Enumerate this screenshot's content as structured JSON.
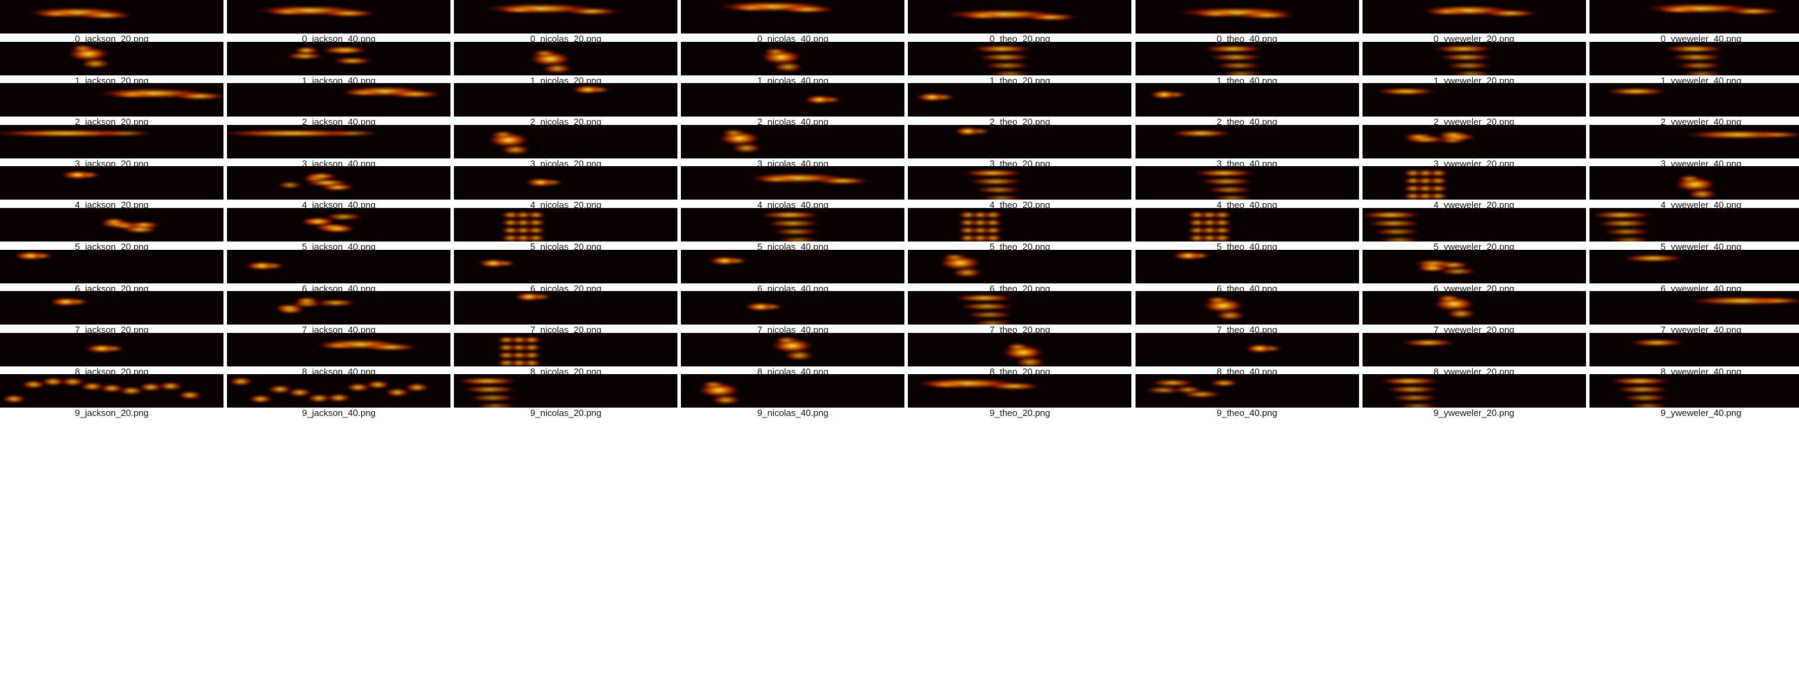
{
  "rows": [
    {
      "label": "0",
      "cells": [
        {
          "caption": "0_jackson_20.png",
          "style": "streak",
          "intensity": 0.8
        },
        {
          "caption": "0_jackson_40.png",
          "style": "streak",
          "intensity": 0.85
        },
        {
          "caption": "0_nicolas_20.png",
          "style": "streak",
          "intensity": 0.9
        },
        {
          "caption": "0_nicolas_40.png",
          "style": "streak",
          "intensity": 0.9
        },
        {
          "caption": "0_theo_20.png",
          "style": "streak",
          "intensity": 0.95
        },
        {
          "caption": "0_theo_40.png",
          "style": "streak",
          "intensity": 0.95
        },
        {
          "caption": "0_yweweler_20.png",
          "style": "streak",
          "intensity": 0.75
        },
        {
          "caption": "0_yweweler_40.png",
          "style": "streak",
          "intensity": 0.9
        }
      ]
    },
    {
      "label": "1",
      "cells": [
        {
          "caption": "1_jackson_20.png",
          "style": "blob",
          "intensity": 0.85
        },
        {
          "caption": "1_jackson_40.png",
          "style": "scatter",
          "intensity": 0.9
        },
        {
          "caption": "1_nicolas_20.png",
          "style": "blob",
          "intensity": 0.8
        },
        {
          "caption": "1_nicolas_40.png",
          "style": "blob",
          "intensity": 0.85
        },
        {
          "caption": "1_theo_20.png",
          "style": "layered",
          "intensity": 0.9
        },
        {
          "caption": "1_theo_40.png",
          "style": "layered",
          "intensity": 0.85
        },
        {
          "caption": "1_yweweler_20.png",
          "style": "layered",
          "intensity": 0.85
        },
        {
          "caption": "1_yweweler_40.png",
          "style": "layered",
          "intensity": 0.8
        }
      ]
    },
    {
      "label": "2",
      "cells": [
        {
          "caption": "2_jackson_20.png",
          "style": "streak",
          "intensity": 0.9
        },
        {
          "caption": "2_jackson_40.png",
          "style": "streak",
          "intensity": 0.7
        },
        {
          "caption": "2_nicolas_20.png",
          "style": "dot",
          "intensity": 0.8
        },
        {
          "caption": "2_nicolas_40.png",
          "style": "dot",
          "intensity": 0.75
        },
        {
          "caption": "2_theo_20.png",
          "style": "dot",
          "intensity": 0.8
        },
        {
          "caption": "2_theo_40.png",
          "style": "dot",
          "intensity": 0.7
        },
        {
          "caption": "2_yweweler_20.png",
          "style": "bar",
          "intensity": 0.9
        },
        {
          "caption": "2_yweweler_40.png",
          "style": "bar",
          "intensity": 0.8
        }
      ]
    },
    {
      "label": "3",
      "cells": [
        {
          "caption": "3_jackson_20.png",
          "style": "longbar",
          "intensity": 0.9
        },
        {
          "caption": "3_jackson_40.png",
          "style": "longbar",
          "intensity": 0.9
        },
        {
          "caption": "3_nicolas_20.png",
          "style": "blob",
          "intensity": 0.85
        },
        {
          "caption": "3_nicolas_40.png",
          "style": "blob",
          "intensity": 0.9
        },
        {
          "caption": "3_theo_20.png",
          "style": "dot",
          "intensity": 0.6
        },
        {
          "caption": "3_theo_40.png",
          "style": "bar",
          "intensity": 0.9
        },
        {
          "caption": "3_yweweler_20.png",
          "style": "scatter",
          "intensity": 0.75
        },
        {
          "caption": "3_yweweler_40.png",
          "style": "rightbar",
          "intensity": 0.9
        }
      ]
    },
    {
      "label": "4",
      "cells": [
        {
          "caption": "4_jackson_20.png",
          "style": "dot",
          "intensity": 0.85
        },
        {
          "caption": "4_jackson_40.png",
          "style": "scatter",
          "intensity": 0.85
        },
        {
          "caption": "4_nicolas_20.png",
          "style": "dot",
          "intensity": 0.75
        },
        {
          "caption": "4_nicolas_40.png",
          "style": "streak",
          "intensity": 0.8
        },
        {
          "caption": "4_theo_20.png",
          "style": "layered",
          "intensity": 0.9
        },
        {
          "caption": "4_theo_40.png",
          "style": "layered",
          "intensity": 0.85
        },
        {
          "caption": "4_yweweler_20.png",
          "style": "block",
          "intensity": 0.9
        },
        {
          "caption": "4_yweweler_40.png",
          "style": "blob",
          "intensity": 0.7
        }
      ]
    },
    {
      "label": "5",
      "cells": [
        {
          "caption": "5_jackson_20.png",
          "style": "scatter",
          "intensity": 0.8
        },
        {
          "caption": "5_jackson_40.png",
          "style": "scatter",
          "intensity": 0.7
        },
        {
          "caption": "5_nicolas_20.png",
          "style": "block",
          "intensity": 0.85
        },
        {
          "caption": "5_nicolas_40.png",
          "style": "layered",
          "intensity": 0.85
        },
        {
          "caption": "5_theo_20.png",
          "style": "block",
          "intensity": 0.8
        },
        {
          "caption": "5_theo_40.png",
          "style": "block",
          "intensity": 0.9
        },
        {
          "caption": "5_yweweler_20.png",
          "style": "layered",
          "intensity": 0.8
        },
        {
          "caption": "5_yweweler_40.png",
          "style": "layered",
          "intensity": 0.6
        }
      ]
    },
    {
      "label": "6",
      "cells": [
        {
          "caption": "6_jackson_20.png",
          "style": "dot",
          "intensity": 0.85
        },
        {
          "caption": "6_jackson_40.png",
          "style": "dot",
          "intensity": 0.85
        },
        {
          "caption": "6_nicolas_20.png",
          "style": "dot",
          "intensity": 0.75
        },
        {
          "caption": "6_nicolas_40.png",
          "style": "dot",
          "intensity": 0.8
        },
        {
          "caption": "6_theo_20.png",
          "style": "blob",
          "intensity": 0.8
        },
        {
          "caption": "6_theo_40.png",
          "style": "dot",
          "intensity": 0.8
        },
        {
          "caption": "6_yweweler_20.png",
          "style": "scatter",
          "intensity": 0.75
        },
        {
          "caption": "6_yweweler_40.png",
          "style": "bar",
          "intensity": 0.85
        }
      ]
    },
    {
      "label": "7",
      "cells": [
        {
          "caption": "7_jackson_20.png",
          "style": "dot",
          "intensity": 0.85
        },
        {
          "caption": "7_jackson_40.png",
          "style": "scatter",
          "intensity": 0.7
        },
        {
          "caption": "7_nicolas_20.png",
          "style": "dot",
          "intensity": 0.7
        },
        {
          "caption": "7_nicolas_40.png",
          "style": "dot",
          "intensity": 0.8
        },
        {
          "caption": "7_theo_20.png",
          "style": "layered",
          "intensity": 0.85
        },
        {
          "caption": "7_theo_40.png",
          "style": "blob",
          "intensity": 0.8
        },
        {
          "caption": "7_yweweler_20.png",
          "style": "blob",
          "intensity": 0.75
        },
        {
          "caption": "7_yweweler_40.png",
          "style": "rightbar",
          "intensity": 0.85
        }
      ]
    },
    {
      "label": "8",
      "cells": [
        {
          "caption": "8_jackson_20.png",
          "style": "dot",
          "intensity": 0.85
        },
        {
          "caption": "8_jackson_40.png",
          "style": "streak",
          "intensity": 0.7
        },
        {
          "caption": "8_nicolas_20.png",
          "style": "block",
          "intensity": 0.85
        },
        {
          "caption": "8_nicolas_40.png",
          "style": "blob",
          "intensity": 0.75
        },
        {
          "caption": "8_theo_20.png",
          "style": "blob",
          "intensity": 0.8
        },
        {
          "caption": "8_theo_40.png",
          "style": "dot",
          "intensity": 0.7
        },
        {
          "caption": "8_yweweler_20.png",
          "style": "bottom",
          "intensity": 0.85
        },
        {
          "caption": "8_yweweler_40.png",
          "style": "bottom",
          "intensity": 0.8
        }
      ]
    },
    {
      "label": "9",
      "cells": [
        {
          "caption": "9_jackson_20.png",
          "style": "wide",
          "intensity": 0.9
        },
        {
          "caption": "9_jackson_40.png",
          "style": "wide",
          "intensity": 0.85
        },
        {
          "caption": "9_nicolas_20.png",
          "style": "layered",
          "intensity": 0.7
        },
        {
          "caption": "9_nicolas_40.png",
          "style": "blob",
          "intensity": 0.7
        },
        {
          "caption": "9_theo_20.png",
          "style": "streak",
          "intensity": 0.85
        },
        {
          "caption": "9_theo_40.png",
          "style": "scatter",
          "intensity": 0.85
        },
        {
          "caption": "9_yweweler_20.png",
          "style": "layered",
          "intensity": 0.75
        },
        {
          "caption": "9_yweweler_40.png",
          "style": "layered",
          "intensity": 0.8
        }
      ]
    }
  ],
  "palette": {
    "background": "#080000",
    "low": "#7a0a00",
    "mid": "#e83a00",
    "high": "#ffb000",
    "peak": "#ffff66"
  }
}
